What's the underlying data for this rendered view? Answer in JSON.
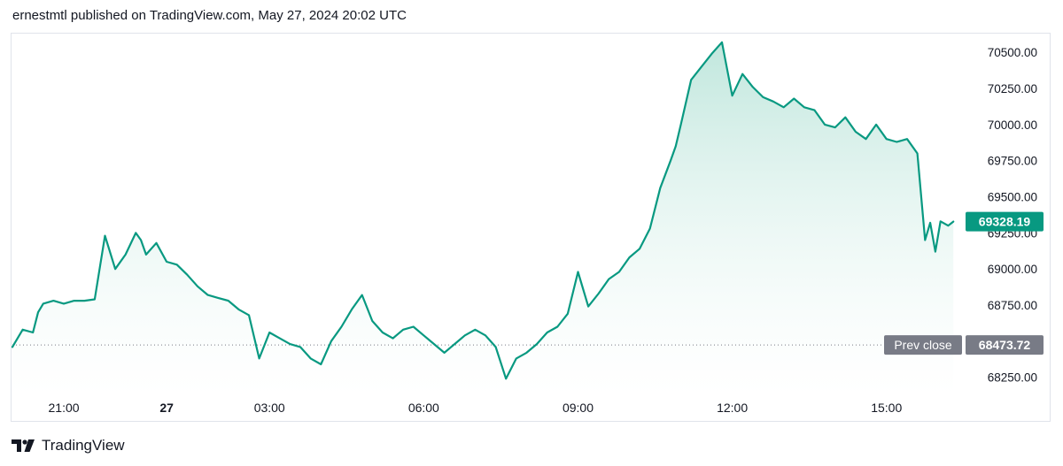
{
  "header": {
    "publish_text": "ernestmtl published on TradingView.com, May 27, 2024 20:02 UTC"
  },
  "footer": {
    "brand_name": "TradingView",
    "logo_icon": "tradingview-logo-icon"
  },
  "colors": {
    "line": "#089981",
    "fill_top": "#b9e4d9",
    "last_price_tag": "#089981",
    "prev_close_tag": "#787b86",
    "prev_close_line": "#787b86",
    "text": "#131722"
  },
  "chart_data": {
    "type": "area",
    "title": "",
    "xlabel": "",
    "ylabel": "",
    "y_axis_position": "right",
    "ylim": [
      68150,
      70630
    ],
    "x_range": [
      -1.8,
      16.6
    ],
    "y_ticks": [
      "70500.00",
      "70250.00",
      "70000.00",
      "69750.00",
      "69500.00",
      "69250.00",
      "69000.00",
      "68750.00",
      "68500.00",
      "68250.00"
    ],
    "y_tick_values": [
      70500,
      70250,
      70000,
      69750,
      69500,
      69250,
      69000,
      68750,
      68500,
      68250
    ],
    "x_ticks": [
      {
        "label": "21:00",
        "value": -0.8,
        "bold": false
      },
      {
        "label": "27",
        "value": 1.2,
        "bold": true
      },
      {
        "label": "03:00",
        "value": 3.2,
        "bold": false
      },
      {
        "label": "06:00",
        "value": 6.2,
        "bold": false
      },
      {
        "label": "09:00",
        "value": 9.2,
        "bold": false
      },
      {
        "label": "12:00",
        "value": 12.2,
        "bold": false
      },
      {
        "label": "15:00",
        "value": 15.2,
        "bold": false
      }
    ],
    "prev_close": {
      "label": "Prev close",
      "value": 68473.72,
      "text": "68473.72"
    },
    "last_price": {
      "value": 69328.19,
      "text": "69328.19"
    },
    "series": [
      {
        "x": [
          -1.8,
          -1.6,
          -1.4,
          -1.3,
          -1.2,
          -1.0,
          -0.8,
          -0.6,
          -0.4,
          -0.2,
          0.0,
          0.2,
          0.4,
          0.6,
          0.7,
          0.8,
          1.0,
          1.2,
          1.4,
          1.6,
          1.8,
          2.0,
          2.2,
          2.4,
          2.6,
          2.8,
          3.0,
          3.2,
          3.4,
          3.6,
          3.8,
          4.0,
          4.2,
          4.4,
          4.6,
          4.8,
          5.0,
          5.2,
          5.4,
          5.6,
          5.8,
          6.0,
          6.2,
          6.4,
          6.6,
          6.8,
          7.0,
          7.2,
          7.4,
          7.6,
          7.8,
          8.0,
          8.2,
          8.4,
          8.6,
          8.8,
          9.0,
          9.2,
          9.4,
          9.6,
          9.8,
          10.0,
          10.2,
          10.4,
          10.6,
          10.8,
          11.0,
          11.1,
          11.2,
          11.4,
          11.6,
          11.8,
          12.0,
          12.2,
          12.4,
          12.6,
          12.8,
          13.0,
          13.2,
          13.4,
          13.6,
          13.8,
          14.0,
          14.2,
          14.4,
          14.6,
          14.8,
          15.0,
          15.2,
          15.4,
          15.6,
          15.8,
          15.95,
          16.05,
          16.15,
          16.25,
          16.4,
          16.5
        ],
        "values": [
          68460,
          68580,
          68560,
          68700,
          68760,
          68780,
          68760,
          68780,
          68780,
          68790,
          69230,
          69000,
          69100,
          69250,
          69200,
          69100,
          69180,
          69050,
          69030,
          68960,
          68880,
          68820,
          68800,
          68780,
          68720,
          68680,
          68380,
          68560,
          68520,
          68480,
          68460,
          68380,
          68340,
          68500,
          68600,
          68720,
          68820,
          68640,
          68560,
          68520,
          68580,
          68600,
          68540,
          68480,
          68420,
          68480,
          68540,
          68580,
          68540,
          68460,
          68240,
          68380,
          68420,
          68480,
          68560,
          68600,
          68690,
          68980,
          68740,
          68830,
          68930,
          68980,
          69080,
          69140,
          69280,
          69560,
          69750,
          69850,
          70000,
          70310,
          70400,
          70490,
          70570,
          70200,
          70350,
          70260,
          70190,
          70160,
          70120,
          70180,
          70120,
          70100,
          70000,
          69980,
          70050,
          69950,
          69900,
          70000,
          69900,
          69880,
          69900,
          69800,
          69200,
          69320,
          69120,
          69330,
          69300,
          69328
        ]
      }
    ]
  }
}
